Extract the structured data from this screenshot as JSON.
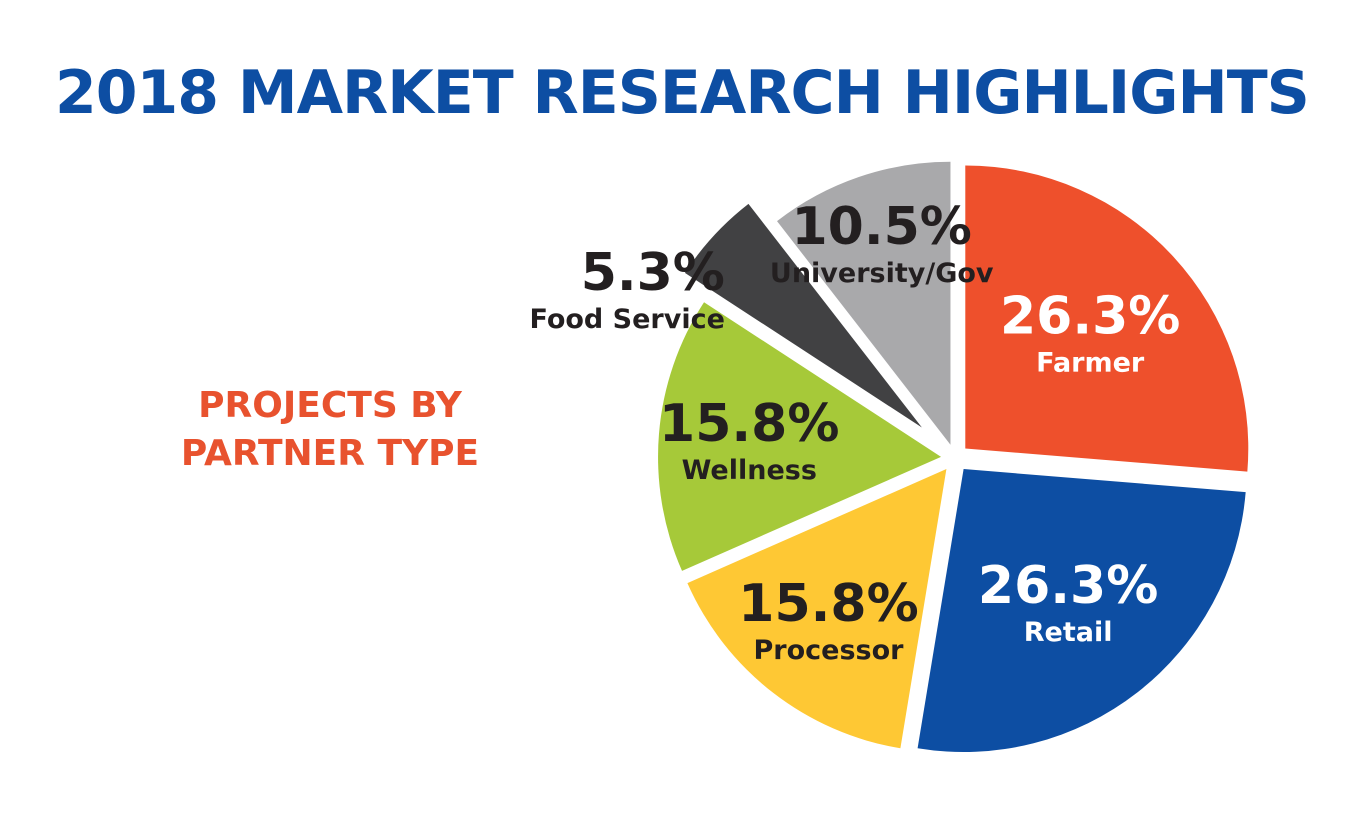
{
  "chart_data": {
    "type": "pie",
    "title": "2018 MARKET RESEARCH HIGHLIGHTS",
    "subtitle": "PROJECTS BY PARTNER TYPE",
    "categories": [
      "Farmer",
      "Retail",
      "Processor",
      "Wellness",
      "Food Service",
      "University/Gov"
    ],
    "values": [
      26.3,
      26.3,
      15.8,
      15.8,
      5.3,
      10.5
    ],
    "value_labels": [
      "26.3%",
      "26.3%",
      "15.8%",
      "15.8%",
      "5.3%",
      "10.5%"
    ],
    "colors": [
      "#ee502c",
      "#0d4ea3",
      "#fec834",
      "#a6c939",
      "#414143",
      "#a9a9ab"
    ]
  }
}
